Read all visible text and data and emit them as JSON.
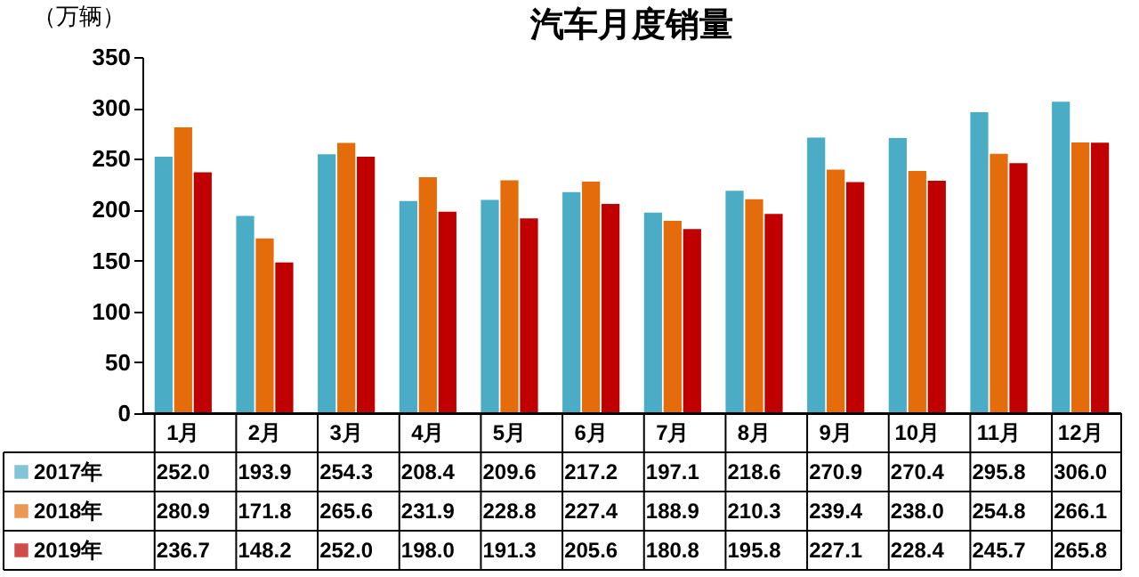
{
  "chart_data": {
    "type": "bar",
    "title": "汽车月度销量",
    "ylabel": "（万辆）",
    "categories": [
      "1月",
      "2月",
      "3月",
      "4月",
      "5月",
      "6月",
      "7月",
      "8月",
      "9月",
      "10月",
      "11月",
      "12月"
    ],
    "series": [
      {
        "name": "2017年",
        "color": "#4bacc6",
        "values": [
          252.0,
          193.9,
          254.3,
          208.4,
          209.6,
          217.2,
          197.1,
          218.6,
          270.9,
          270.4,
          295.8,
          306.0
        ],
        "value_labels": [
          "252.0",
          "193.9",
          "254.3",
          "208.4",
          "209.6",
          "217.2",
          "197.1",
          "218.6",
          "270.9",
          "270.4",
          "295.8",
          "306.0"
        ]
      },
      {
        "name": "2018年",
        "color": "#e46c0a",
        "values": [
          280.9,
          171.8,
          265.6,
          231.9,
          228.8,
          227.4,
          188.9,
          210.3,
          239.4,
          238.0,
          254.8,
          266.1
        ],
        "value_labels": [
          "280.9",
          "171.8",
          "265.6",
          "231.9",
          "228.8",
          "227.4",
          "188.9",
          "210.3",
          "239.4",
          "238.0",
          "254.8",
          "266.1"
        ]
      },
      {
        "name": "2019年",
        "color": "#c00000",
        "values": [
          236.7,
          148.2,
          252.0,
          198.0,
          191.3,
          205.6,
          180.8,
          195.8,
          227.1,
          228.4,
          245.7,
          265.8
        ],
        "value_labels": [
          "236.7",
          "148.2",
          "252.0",
          "198.0",
          "191.3",
          "205.6",
          "180.8",
          "195.8",
          "227.1",
          "228.4",
          "245.7",
          "265.8"
        ]
      }
    ],
    "ylim": [
      0,
      350
    ],
    "yticks": [
      0,
      50,
      100,
      150,
      200,
      250,
      300,
      350
    ],
    "grid": false,
    "legend": "bottom left"
  }
}
